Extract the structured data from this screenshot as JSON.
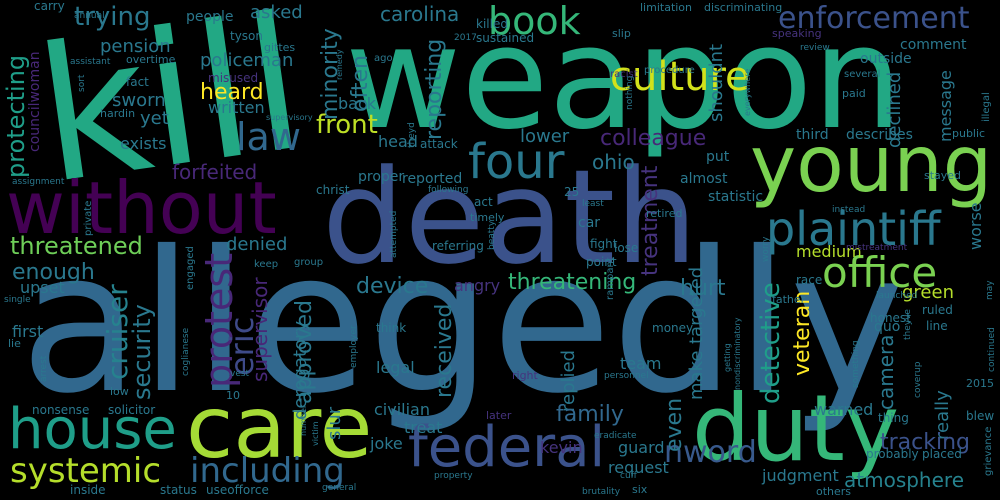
{
  "words": [
    {
      "text": "kill",
      "color": "#22a884"
    },
    {
      "text": "weapon",
      "color": "#22a884"
    },
    {
      "text": "allegedly",
      "color": "#31688e"
    },
    {
      "text": "death",
      "color": "#3b528b"
    },
    {
      "text": "young",
      "color": "#7ad151"
    },
    {
      "text": "without",
      "color": "#440154"
    },
    {
      "text": "care",
      "color": "#a5db36"
    },
    {
      "text": "duty",
      "color": "#35b779"
    },
    {
      "text": "house",
      "color": "#1f9e89"
    },
    {
      "text": "federal",
      "color": "#3b528b"
    },
    {
      "text": "culture",
      "color": "#d2e21b"
    },
    {
      "text": "plaintiff",
      "color": "#2a788e"
    },
    {
      "text": "four",
      "color": "#2a788e"
    },
    {
      "text": "office",
      "color": "#7ad151"
    },
    {
      "text": "book",
      "color": "#35b779"
    },
    {
      "text": "enforcement",
      "color": "#3b528b"
    },
    {
      "text": "law",
      "color": "#31688e"
    },
    {
      "text": "systemic",
      "color": "#b5de2b"
    },
    {
      "text": "including",
      "color": "#31688e"
    },
    {
      "text": "nword",
      "color": "#38598c"
    },
    {
      "text": "protest",
      "color": "#482878"
    },
    {
      "text": "threatened",
      "color": "#6ece58"
    },
    {
      "text": "trying",
      "color": "#2a788e"
    },
    {
      "text": "front",
      "color": "#bddf26"
    },
    {
      "text": "heard",
      "color": "#fde725"
    },
    {
      "text": "eric",
      "color": "#3e4a89"
    },
    {
      "text": "cruiser",
      "color": "#26828e"
    },
    {
      "text": "protecting",
      "color": "#1f9e89"
    },
    {
      "text": "enough",
      "color": "#2a788e"
    },
    {
      "text": "security",
      "color": "#2a788e"
    },
    {
      "text": "device",
      "color": "#2a788e"
    },
    {
      "text": "threatening",
      "color": "#35b779"
    },
    {
      "text": "family",
      "color": "#31688e"
    },
    {
      "text": "colleague",
      "color": "#482878"
    },
    {
      "text": "ohio",
      "color": "#2a788e"
    },
    {
      "text": "detective",
      "color": "#1f9e89"
    },
    {
      "text": "veteran",
      "color": "#fde725"
    },
    {
      "text": "treatment",
      "color": "#46337e"
    },
    {
      "text": "tracking",
      "color": "#3b528b"
    },
    {
      "text": "atmosphere",
      "color": "#26828e"
    },
    {
      "text": "received",
      "color": "#2a788e"
    },
    {
      "text": "approved",
      "color": "#2a788e"
    },
    {
      "text": "reporting",
      "color": "#2a788e"
    },
    {
      "text": "minority",
      "color": "#2a788e"
    },
    {
      "text": "often",
      "color": "#2a788e"
    },
    {
      "text": "carolina",
      "color": "#2a788e"
    },
    {
      "text": "asked",
      "color": "#2a788e"
    },
    {
      "text": "pension",
      "color": "#2a788e"
    },
    {
      "text": "policeman",
      "color": "#2a788e"
    },
    {
      "text": "sworn",
      "color": "#2a788e"
    },
    {
      "text": "yet",
      "color": "#2a788e"
    },
    {
      "text": "exists",
      "color": "#2a788e"
    },
    {
      "text": "written",
      "color": "#2a788e"
    },
    {
      "text": "lower",
      "color": "#2a788e"
    },
    {
      "text": "forfeited",
      "color": "#482878"
    },
    {
      "text": "denied",
      "color": "#2a788e"
    },
    {
      "text": "hurt",
      "color": "#2a788e"
    },
    {
      "text": "medium",
      "color": "#b5de2b"
    },
    {
      "text": "green",
      "color": "#b5de2b"
    },
    {
      "text": "camera",
      "color": "#2a788e"
    },
    {
      "text": "make",
      "color": "#2a788e"
    },
    {
      "text": "even",
      "color": "#2a788e"
    },
    {
      "text": "kevin",
      "color": "#46337e"
    },
    {
      "text": "joke",
      "color": "#2a788e"
    },
    {
      "text": "treat",
      "color": "#2a788e"
    },
    {
      "text": "civilian",
      "color": "#2a788e"
    },
    {
      "text": "legal",
      "color": "#2a788e"
    },
    {
      "text": "angry",
      "color": "#46337e"
    },
    {
      "text": "upset",
      "color": "#2a788e"
    },
    {
      "text": "first",
      "color": "#2a788e"
    },
    {
      "text": "warned",
      "color": "#2a788e"
    },
    {
      "text": "really",
      "color": "#2a788e"
    },
    {
      "text": "judgment",
      "color": "#2a788e"
    },
    {
      "text": "request",
      "color": "#2a788e"
    },
    {
      "text": "guard",
      "color": "#2a788e"
    },
    {
      "text": "team",
      "color": "#2a788e"
    },
    {
      "text": "head",
      "color": "#2a788e"
    },
    {
      "text": "back",
      "color": "#2a788e"
    },
    {
      "text": "people",
      "color": "#2a788e"
    },
    {
      "text": "comment",
      "color": "#2a788e"
    },
    {
      "text": "outside",
      "color": "#2a788e"
    },
    {
      "text": "declined",
      "color": "#2a788e"
    },
    {
      "text": "message",
      "color": "#2a788e"
    },
    {
      "text": "third",
      "color": "#2a788e"
    },
    {
      "text": "describes",
      "color": "#2a788e"
    },
    {
      "text": "statistic",
      "color": "#2a788e"
    },
    {
      "text": "put",
      "color": "#2a788e"
    },
    {
      "text": "almost",
      "color": "#2a788e"
    },
    {
      "text": "car",
      "color": "#2a788e"
    },
    {
      "text": "worse",
      "color": "#2a788e"
    },
    {
      "text": "quo",
      "color": "#2a788e"
    },
    {
      "text": "proper",
      "color": "#2a788e"
    },
    {
      "text": "reported",
      "color": "#2a788e"
    },
    {
      "text": "supervisor",
      "color": "#482878"
    },
    {
      "text": "derogatory",
      "color": "#2a788e"
    },
    {
      "text": "slur",
      "color": "#2a788e"
    },
    {
      "text": "replied",
      "color": "#2a788e"
    },
    {
      "text": "targeted",
      "color": "#2a788e"
    },
    {
      "text": "nonsense",
      "color": "#2a788e"
    },
    {
      "text": "solicitor",
      "color": "#2a788e"
    },
    {
      "text": "status",
      "color": "#2a788e"
    },
    {
      "text": "useofforce",
      "color": "#2a788e"
    },
    {
      "text": "inside",
      "color": "#2a788e"
    },
    {
      "text": "thing",
      "color": "#2a788e"
    },
    {
      "text": "probably",
      "color": "#2a788e"
    },
    {
      "text": "placed",
      "color": "#2a788e"
    },
    {
      "text": "blew",
      "color": "#2a788e"
    },
    {
      "text": "2015",
      "color": "#2a788e"
    },
    {
      "text": "honest",
      "color": "#2a788e"
    },
    {
      "text": "ruled",
      "color": "#2a788e"
    },
    {
      "text": "line",
      "color": "#2a788e"
    },
    {
      "text": "race",
      "color": "#2a788e"
    },
    {
      "text": "money",
      "color": "#2a788e"
    },
    {
      "text": "think",
      "color": "#2a788e"
    },
    {
      "text": "fight",
      "color": "#2a788e"
    },
    {
      "text": "lose",
      "color": "#2a788e"
    },
    {
      "text": "point",
      "color": "#2a788e"
    },
    {
      "text": "referring",
      "color": "#2a788e"
    },
    {
      "text": "act",
      "color": "#2a788e"
    },
    {
      "text": "christ",
      "color": "#2a788e"
    },
    {
      "text": "fact",
      "color": "#2a788e"
    },
    {
      "text": "tyson",
      "color": "#2a788e"
    },
    {
      "text": "carry",
      "color": "#2a788e"
    },
    {
      "text": "misused",
      "color": "#46337e"
    },
    {
      "text": "killed",
      "color": "#2a788e"
    },
    {
      "text": "sustained",
      "color": "#2a788e"
    },
    {
      "text": "attack",
      "color": "#2a788e"
    },
    {
      "text": "25",
      "color": "#2a788e"
    },
    {
      "text": "father",
      "color": "#2a788e"
    },
    {
      "text": "councilwoman",
      "color": "#482878"
    },
    {
      "text": "overtime",
      "color": "#2a788e"
    },
    {
      "text": "hardin",
      "color": "#2a788e"
    },
    {
      "text": "gittes",
      "color": "#2a788e"
    },
    {
      "text": "limitation",
      "color": "#2a788e"
    },
    {
      "text": "discriminating",
      "color": "#2a788e"
    },
    {
      "text": "slip",
      "color": "#2a788e"
    },
    {
      "text": "speaking",
      "color": "#46337e"
    },
    {
      "text": "2017",
      "color": "#2a788e"
    },
    {
      "text": "ago",
      "color": "#2a788e"
    },
    {
      "text": "review",
      "color": "#2a788e"
    },
    {
      "text": "several",
      "color": "#2a788e"
    },
    {
      "text": "paid",
      "color": "#2a788e"
    },
    {
      "text": "illegal",
      "color": "#2a788e"
    },
    {
      "text": "public",
      "color": "#2a788e"
    },
    {
      "text": "everywhere",
      "color": "#2a788e"
    },
    {
      "text": "racist",
      "color": "#46337e"
    },
    {
      "text": "procedure",
      "color": "#2a788e"
    },
    {
      "text": "nothing",
      "color": "#2a788e"
    },
    {
      "text": "shouldnt",
      "color": "#2a788e"
    },
    {
      "text": "stayed",
      "color": "#2a788e"
    },
    {
      "text": "retired",
      "color": "#2a788e"
    },
    {
      "text": "timely",
      "color": "#2a788e"
    },
    {
      "text": "least",
      "color": "#2a788e"
    },
    {
      "text": "following",
      "color": "#2a788e"
    },
    {
      "text": "instead",
      "color": "#2a788e"
    },
    {
      "text": "mistreatment",
      "color": "#46337e"
    },
    {
      "text": "worry",
      "color": "#2a788e"
    },
    {
      "text": "rampant",
      "color": "#2a788e"
    },
    {
      "text": "beatty",
      "color": "#2a788e"
    },
    {
      "text": "attempted",
      "color": "#2a788e"
    },
    {
      "text": "private",
      "color": "#2a788e"
    },
    {
      "text": "assignment",
      "color": "#2a788e"
    },
    {
      "text": "annual",
      "color": "#2a788e"
    },
    {
      "text": "assistant",
      "color": "#2a788e"
    },
    {
      "text": "supervisory",
      "color": "#2a788e"
    },
    {
      "text": "remedy",
      "color": "#2a788e"
    },
    {
      "text": "theyd",
      "color": "#2a788e"
    },
    {
      "text": "sort",
      "color": "#2a788e"
    },
    {
      "text": "keep",
      "color": "#2a788e"
    },
    {
      "text": "group",
      "color": "#2a788e"
    },
    {
      "text": "employer",
      "color": "#2a788e"
    },
    {
      "text": "launched",
      "color": "#2a788e"
    },
    {
      "text": "something",
      "color": "#2a788e"
    },
    {
      "text": "theyve",
      "color": "#2a788e"
    },
    {
      "text": "getting",
      "color": "#2a788e"
    },
    {
      "text": "nondiscriminatory",
      "color": "#2a788e"
    },
    {
      "text": "coverup",
      "color": "#2a788e"
    },
    {
      "text": "continued",
      "color": "#2a788e"
    },
    {
      "text": "grievance",
      "color": "#2a788e"
    },
    {
      "text": "may",
      "color": "#2a788e"
    },
    {
      "text": "single",
      "color": "#2a788e"
    },
    {
      "text": "lie",
      "color": "#2a788e"
    },
    {
      "text": "arrest",
      "color": "#2a788e"
    },
    {
      "text": "low",
      "color": "#2a788e"
    },
    {
      "text": "10",
      "color": "#2a788e"
    },
    {
      "text": "vest",
      "color": "#2a788e"
    },
    {
      "text": "engaged",
      "color": "#2a788e"
    },
    {
      "text": "coglianese",
      "color": "#2a788e"
    },
    {
      "text": "number",
      "color": "#2a788e"
    },
    {
      "text": "victim",
      "color": "#2a788e"
    },
    {
      "text": "general",
      "color": "#2a788e"
    },
    {
      "text": "later",
      "color": "#46337e"
    },
    {
      "text": "right",
      "color": "#46337e"
    },
    {
      "text": "personnel",
      "color": "#2a788e"
    },
    {
      "text": "eradicate",
      "color": "#2a788e"
    },
    {
      "text": "property",
      "color": "#2a788e"
    },
    {
      "text": "cuff",
      "color": "#2a788e"
    },
    {
      "text": "brutality",
      "color": "#2a788e"
    },
    {
      "text": "six",
      "color": "#2a788e"
    },
    {
      "text": "others",
      "color": "#2a788e"
    }
  ]
}
